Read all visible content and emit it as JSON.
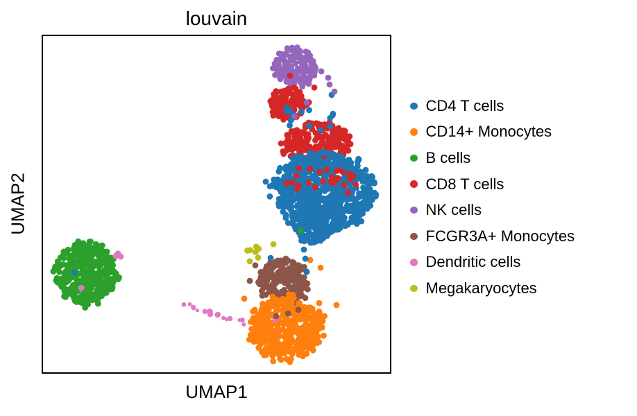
{
  "figure": {
    "title": "louvain",
    "xlabel": "UMAP1",
    "ylabel": "UMAP2"
  },
  "chart_data": {
    "type": "scatter",
    "title": "louvain",
    "xlabel": "UMAP1",
    "ylabel": "UMAP2",
    "axes": {
      "ticks_visible": false,
      "frame": true,
      "frame_color": "#000000",
      "background": "#ffffff",
      "note": "UMAP embedding; axes unlabeled numerically, coordinates below are fractions of the axes box (x right, y down)"
    },
    "style": {
      "dot_radius": 4.4,
      "legend_position": "right"
    },
    "legend": [
      {
        "label": "CD4 T cells",
        "color": "#1f77b4"
      },
      {
        "label": "CD14+ Monocytes",
        "color": "#ff7f0e"
      },
      {
        "label": "B cells",
        "color": "#2ca02c"
      },
      {
        "label": "CD8 T cells",
        "color": "#d62728"
      },
      {
        "label": "NK cells",
        "color": "#9467bd"
      },
      {
        "label": "FCGR3A+ Monocytes",
        "color": "#8c564b"
      },
      {
        "label": "Dendritic cells",
        "color": "#e377c2"
      },
      {
        "label": "Megakaryocytes",
        "color": "#bcbd22"
      }
    ],
    "clusters": [
      {
        "name": "nk-cells-main",
        "color": "#9467bd",
        "blobs": [
          {
            "cx": 0.728,
            "cy": 0.093,
            "rx": 0.066,
            "ry": 0.056,
            "n": 150
          }
        ]
      },
      {
        "name": "cd8-t-cells-main",
        "color": "#d62728",
        "blobs": [
          {
            "cx": 0.706,
            "cy": 0.202,
            "rx": 0.056,
            "ry": 0.048,
            "n": 115
          },
          {
            "cx": 0.786,
            "cy": 0.317,
            "rx": 0.1,
            "ry": 0.062,
            "n": 210
          }
        ]
      },
      {
        "name": "cd4-t-cells-main",
        "color": "#1f77b4",
        "blobs": [
          {
            "cx": 0.81,
            "cy": 0.464,
            "rx": 0.144,
            "ry": 0.12,
            "n": 800
          },
          {
            "cx": 0.772,
            "cy": 0.573,
            "rx": 0.048,
            "ry": 0.042,
            "n": 90
          }
        ]
      },
      {
        "name": "b-cells-main",
        "color": "#2ca02c",
        "blobs": [
          {
            "cx": 0.124,
            "cy": 0.707,
            "rx": 0.088,
            "ry": 0.093,
            "n": 360
          }
        ]
      },
      {
        "name": "fcgr3a-monocytes-main",
        "color": "#8c564b",
        "blobs": [
          {
            "cx": 0.692,
            "cy": 0.73,
            "rx": 0.076,
            "ry": 0.066,
            "n": 200
          }
        ]
      },
      {
        "name": "cd14-monocytes-main",
        "color": "#ff7f0e",
        "blobs": [
          {
            "cx": 0.702,
            "cy": 0.868,
            "rx": 0.108,
            "ry": 0.096,
            "n": 450
          }
        ],
        "points": [
          [
            0.77,
            0.666
          ],
          [
            0.8,
            0.689
          ],
          [
            0.796,
            0.794
          ],
          [
            0.846,
            0.8
          ],
          [
            0.58,
            0.781
          ]
        ]
      },
      {
        "name": "megakaryocytes",
        "color": "#bcbd22",
        "blobs": [
          {
            "cx": 0.607,
            "cy": 0.648,
            "rx": 0.02,
            "ry": 0.027,
            "n": 8
          }
        ],
        "points": [
          [
            0.664,
            0.619
          ]
        ]
      },
      {
        "name": "dendritic-cells",
        "color": "#e377c2",
        "line": {
          "x1": 0.406,
          "y1": 0.798,
          "x2": 0.582,
          "y2": 0.853,
          "n": 16,
          "jitter": 0.01
        },
        "points": [
          [
            0.216,
            0.647
          ],
          [
            0.224,
            0.656
          ],
          [
            0.21,
            0.654
          ],
          [
            0.11,
            0.749
          ],
          [
            0.67,
            0.843
          ]
        ]
      },
      {
        "name": "cd8-scatter-in-cd4",
        "color": "#d62728",
        "blobs": [
          {
            "cx": 0.8,
            "cy": 0.435,
            "rx": 0.12,
            "ry": 0.048,
            "n": 26
          }
        ],
        "points": [
          [
            0.712,
            0.118
          ],
          [
            0.782,
            0.153
          ]
        ]
      },
      {
        "name": "cd4-scatter",
        "color": "#1f77b4",
        "blobs": [
          {
            "cx": 0.76,
            "cy": 0.24,
            "rx": 0.09,
            "ry": 0.05,
            "n": 14
          }
        ],
        "points": [
          [
            0.746,
            0.579
          ],
          [
            0.776,
            0.59
          ],
          [
            0.752,
            0.635
          ],
          [
            0.756,
            0.662
          ],
          [
            0.76,
            0.701
          ],
          [
            0.656,
            0.66
          ],
          [
            0.642,
            0.433
          ],
          [
            0.654,
            0.447
          ],
          [
            0.78,
            0.598
          ],
          [
            0.832,
            0.175
          ],
          [
            0.09,
            0.703
          ]
        ]
      },
      {
        "name": "nk-scatter",
        "color": "#9467bd",
        "points": [
          [
            0.802,
            0.105
          ],
          [
            0.822,
            0.124
          ],
          [
            0.826,
            0.144
          ],
          [
            0.84,
            0.165
          ],
          [
            0.76,
            0.198
          ],
          [
            0.726,
            0.239
          ]
        ]
      },
      {
        "name": "fcgr3a-scatter",
        "color": "#8c564b",
        "points": [
          [
            0.706,
            0.825
          ],
          [
            0.736,
            0.814
          ],
          [
            0.672,
            0.833
          ],
          [
            0.756,
            0.779
          ],
          [
            0.612,
            0.682
          ],
          [
            0.596,
            0.728
          ]
        ]
      },
      {
        "name": "b-cell-outlier",
        "color": "#2ca02c",
        "points": [
          [
            0.742,
            0.579
          ]
        ]
      }
    ]
  }
}
